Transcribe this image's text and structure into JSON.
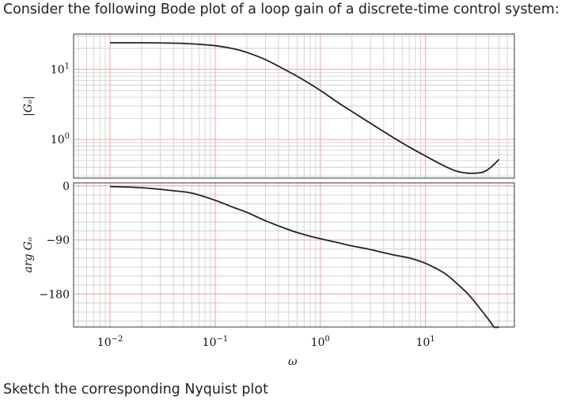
{
  "question": "Consider the following Bode plot of a loop gain of a discrete-time control system:",
  "footer": "Sketch the corresponding Nyquist plot",
  "chart_data": {
    "type": "line",
    "title": "",
    "xlabel": "ω",
    "x_scale": "log",
    "x_ticks": [
      {
        "value": 0.01,
        "label": "10",
        "exp": "−2"
      },
      {
        "value": 0.1,
        "label": "10",
        "exp": "−1"
      },
      {
        "value": 1,
        "label": "10",
        "exp": "0"
      },
      {
        "value": 10,
        "label": "10",
        "exp": "1"
      }
    ],
    "colors": {
      "curve": "#222222",
      "major_grid": "#f2a3a3",
      "minor_grid": "#cccccc"
    },
    "magnitude": {
      "ylabel": "|Gₒ|",
      "y_scale": "log",
      "ylim": [
        0.28,
        32
      ],
      "y_ticks": [
        {
          "value": 1,
          "label": "10",
          "exp": "0"
        },
        {
          "value": 10,
          "label": "10",
          "exp": "1"
        }
      ],
      "series": [
        {
          "x": [
            0.01,
            0.02,
            0.04,
            0.06,
            0.1,
            0.15,
            0.2,
            0.3,
            0.5,
            0.7,
            1,
            1.5,
            2,
            3,
            5,
            7,
            10,
            15,
            20,
            25,
            30,
            35,
            40,
            45,
            50
          ],
          "y": [
            24,
            24,
            23.7,
            23.2,
            21.8,
            19.7,
            17.5,
            13.8,
            9.3,
            7,
            5,
            3.3,
            2.5,
            1.7,
            1.05,
            0.78,
            0.58,
            0.42,
            0.35,
            0.33,
            0.33,
            0.34,
            0.38,
            0.44,
            0.52
          ]
        }
      ]
    },
    "phase": {
      "ylabel": "arg Gₒ",
      "ylim": [
        -235,
        5
      ],
      "y_ticks": [
        {
          "value": 0,
          "label": "0"
        },
        {
          "value": -90,
          "label": "−90"
        },
        {
          "value": -180,
          "label": "−180"
        }
      ],
      "series": [
        {
          "x": [
            0.01,
            0.02,
            0.04,
            0.06,
            0.1,
            0.15,
            0.2,
            0.3,
            0.5,
            0.7,
            1,
            1.5,
            2,
            3,
            5,
            7,
            10,
            15,
            20,
            25,
            30,
            35,
            40,
            45,
            50
          ],
          "y": [
            -1,
            -3,
            -8,
            -12,
            -24,
            -36,
            -44,
            -58,
            -73,
            -81,
            -88,
            -95,
            -100,
            -106,
            -115,
            -120,
            -129,
            -145,
            -163,
            -179,
            -195,
            -210,
            -223,
            -235,
            -245
          ]
        }
      ]
    }
  }
}
